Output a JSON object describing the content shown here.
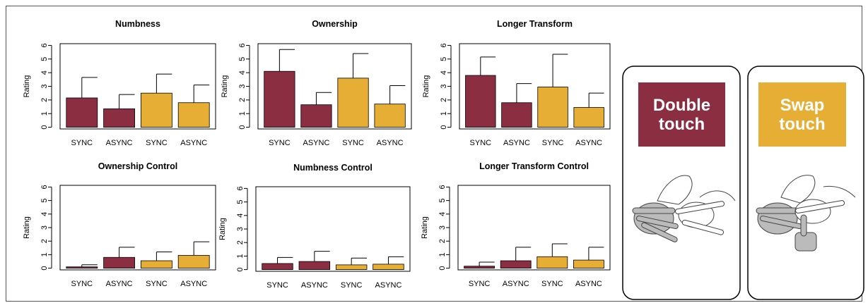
{
  "chart_data": [
    {
      "type": "bar",
      "title": "Numbness",
      "ylabel": "Rating",
      "categories": [
        "SYNC",
        "ASYNC",
        "SYNC",
        "ASYNC"
      ],
      "values": [
        2.15,
        1.35,
        2.5,
        1.8
      ],
      "errors": [
        1.5,
        1.05,
        1.4,
        1.3
      ],
      "colors": [
        "#8b2e42",
        "#8b2e42",
        "#e6ae35",
        "#e6ae35"
      ],
      "ylim": [
        0,
        6
      ],
      "yticks": [
        0,
        1,
        2,
        3,
        4,
        5,
        6
      ]
    },
    {
      "type": "bar",
      "title": "Ownership",
      "ylabel": "Rating",
      "categories": [
        "SYNC",
        "ASYNC",
        "SYNC",
        "ASYNC"
      ],
      "values": [
        4.1,
        1.65,
        3.6,
        1.7
      ],
      "errors": [
        1.6,
        0.9,
        1.8,
        1.35
      ],
      "colors": [
        "#8b2e42",
        "#8b2e42",
        "#e6ae35",
        "#e6ae35"
      ],
      "ylim": [
        0,
        6
      ],
      "yticks": [
        0,
        1,
        2,
        3,
        4,
        5,
        6
      ]
    },
    {
      "type": "bar",
      "title": "Longer Transform",
      "ylabel": "Rating",
      "categories": [
        "SYNC",
        "ASYNC",
        "SYNC",
        "ASYNC"
      ],
      "values": [
        3.8,
        1.8,
        2.95,
        1.45
      ],
      "errors": [
        1.35,
        1.4,
        2.4,
        1.05
      ],
      "colors": [
        "#8b2e42",
        "#8b2e42",
        "#e6ae35",
        "#e6ae35"
      ],
      "ylim": [
        0,
        6
      ],
      "yticks": [
        0,
        1,
        2,
        3,
        4,
        5,
        6
      ]
    },
    {
      "type": "bar",
      "title": "Ownership Control",
      "ylabel": "Rating",
      "categories": [
        "SYNC",
        "ASYNC",
        "SYNC",
        "ASYNC"
      ],
      "values": [
        0.1,
        0.8,
        0.55,
        0.95
      ],
      "errors": [
        0.15,
        0.75,
        0.65,
        1.0
      ],
      "colors": [
        "#8b2e42",
        "#8b2e42",
        "#e6ae35",
        "#e6ae35"
      ],
      "ylim": [
        0,
        6
      ],
      "yticks": [
        0,
        1,
        2,
        3,
        4,
        5,
        6
      ]
    },
    {
      "type": "bar",
      "title": "Numbness Control",
      "ylabel": "Rating",
      "categories": [
        "SYNC",
        "ASYNC",
        "SYNC",
        "ASYNC"
      ],
      "values": [
        0.45,
        0.6,
        0.35,
        0.4
      ],
      "errors": [
        0.45,
        0.75,
        0.5,
        0.55
      ],
      "colors": [
        "#8b2e42",
        "#8b2e42",
        "#e6ae35",
        "#e6ae35"
      ],
      "ylim": [
        0,
        6
      ],
      "yticks": [
        0,
        1,
        2,
        3,
        4,
        5,
        6
      ]
    },
    {
      "type": "bar",
      "title": "Longer Transform Control",
      "ylabel": "Rating",
      "categories": [
        "SYNC",
        "ASYNC",
        "SYNC",
        "ASYNC"
      ],
      "values": [
        0.15,
        0.55,
        0.85,
        0.6
      ],
      "errors": [
        0.3,
        1.0,
        0.95,
        0.95
      ],
      "colors": [
        "#8b2e42",
        "#8b2e42",
        "#e6ae35",
        "#e6ae35"
      ],
      "ylim": [
        0,
        6
      ],
      "yticks": [
        0,
        1,
        2,
        3,
        4,
        5,
        6
      ]
    }
  ],
  "panels": [
    {
      "label": "Double touch"
    },
    {
      "label": "Swap touch"
    }
  ]
}
